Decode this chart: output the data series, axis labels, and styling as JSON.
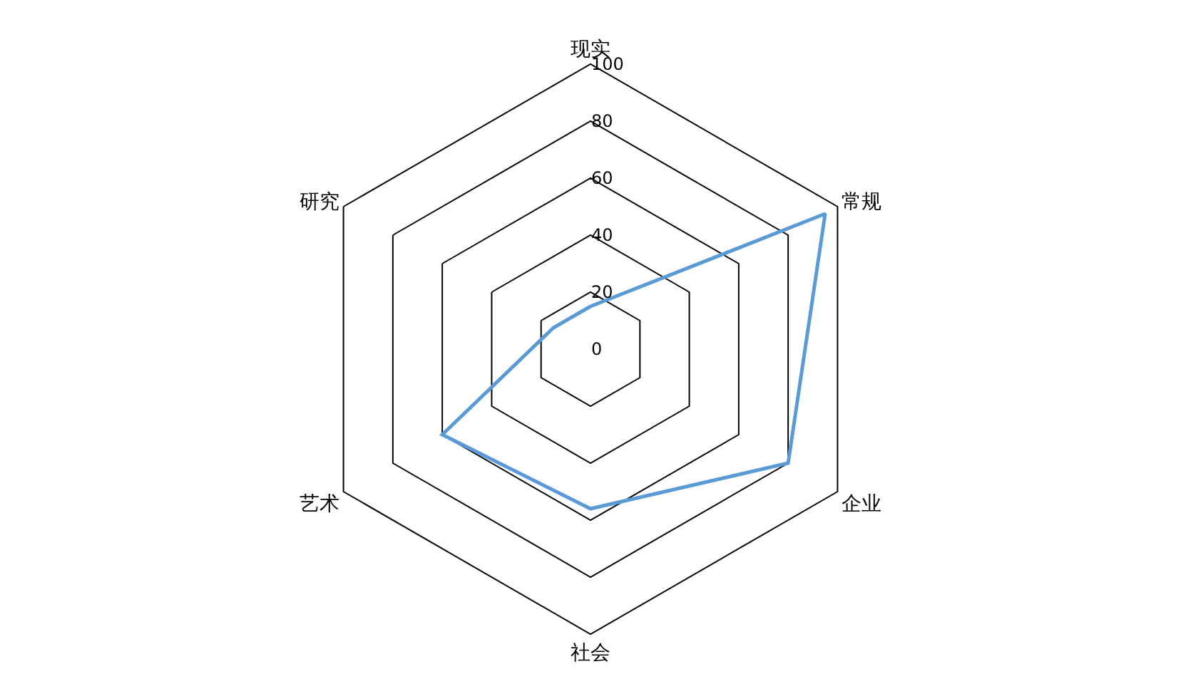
{
  "chart_data": {
    "type": "radar",
    "categories": [
      "现实",
      "常规",
      "企业",
      "社会",
      "艺术",
      "研究"
    ],
    "ylim": [
      0,
      100
    ],
    "yticks": [
      0,
      20,
      40,
      60,
      80,
      100
    ],
    "grid": true,
    "marker": "none",
    "series": [
      {
        "color": "#5b9bd5",
        "values": [
          15,
          95,
          80,
          56,
          60,
          15
        ]
      }
    ]
  }
}
